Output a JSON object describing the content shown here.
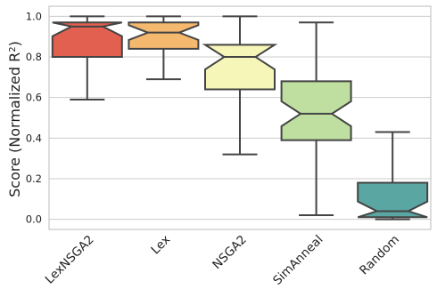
{
  "chart_data": {
    "type": "boxplot",
    "ylabel": "Score (Normalized R",
    "ylabel_sup": "2",
    "ylabel_close": ")",
    "ylim": [
      -0.05,
      1.05
    ],
    "yticks": [
      0.0,
      0.2,
      0.4,
      0.6,
      0.8,
      1.0
    ],
    "ytick_labels": [
      "0.0",
      "0.2",
      "0.4",
      "0.6",
      "0.8",
      "1.0"
    ],
    "grid": "horizontal",
    "notched": true,
    "categories": [
      "LexNSGA2",
      "Lex",
      "NSGA2",
      "SimAnneal",
      "Random"
    ],
    "boxes": [
      {
        "category": "LexNSGA2",
        "whisker_low": 0.59,
        "q1": 0.8,
        "median": 0.95,
        "q3": 0.97,
        "whisker_high": 1.0,
        "color": "#e1604f"
      },
      {
        "category": "Lex",
        "whisker_low": 0.69,
        "q1": 0.84,
        "median": 0.92,
        "q3": 0.97,
        "whisker_high": 1.0,
        "color": "#f4b86f"
      },
      {
        "category": "NSGA2",
        "whisker_low": 0.32,
        "q1": 0.64,
        "median": 0.8,
        "q3": 0.86,
        "whisker_high": 1.0,
        "color": "#f7f6b9"
      },
      {
        "category": "SimAnneal",
        "whisker_low": 0.02,
        "q1": 0.39,
        "median": 0.52,
        "q3": 0.68,
        "whisker_high": 0.97,
        "color": "#bedf9f"
      },
      {
        "category": "Random",
        "whisker_low": 0.0,
        "q1": 0.01,
        "median": 0.04,
        "q3": 0.18,
        "whisker_high": 0.43,
        "color": "#5aa6a2"
      }
    ],
    "colors": {
      "edge": "#444444",
      "grid": "#cccccc",
      "frame": "#bbbbbb",
      "text": "#222222"
    }
  }
}
